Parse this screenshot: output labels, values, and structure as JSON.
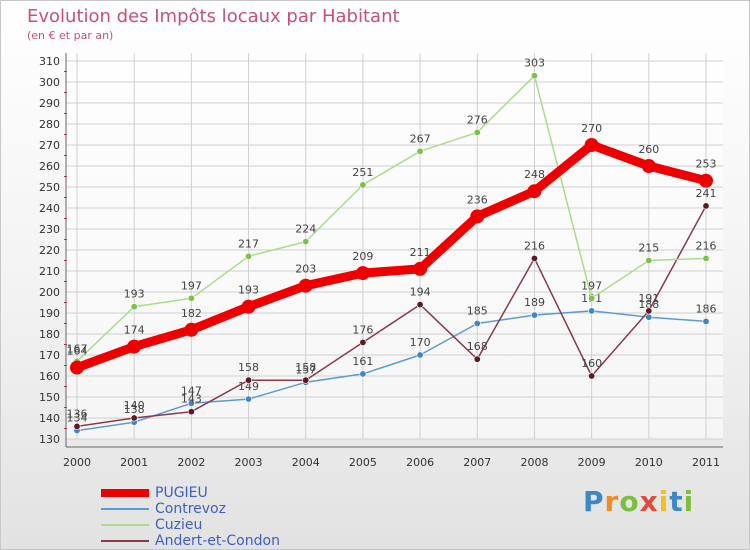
{
  "header": {
    "title": "Evolution des Impôts locaux par Habitant",
    "subtitle": "(en € et par an)"
  },
  "logo": {
    "text": "Proxiti",
    "letter_colors": [
      "#3f86c8",
      "#f28a1e",
      "#7bbf3c",
      "#e04a3c",
      "#f2c01e",
      "#3f86c8",
      "#7bbf3c"
    ]
  },
  "chart_data": {
    "type": "line",
    "title": "Evolution des Impôts locaux par Habitant",
    "subtitle": "(en € et par an)",
    "xlabel": "",
    "ylabel": "",
    "x": [
      "2000",
      "2001",
      "2002",
      "2003",
      "2004",
      "2005",
      "2006",
      "2007",
      "2008",
      "2009",
      "2010",
      "2011"
    ],
    "y_ticks": [
      130,
      140,
      150,
      160,
      170,
      180,
      190,
      200,
      210,
      220,
      230,
      240,
      250,
      260,
      270,
      280,
      290,
      300,
      310
    ],
    "ylim": [
      130,
      310
    ],
    "grid": true,
    "legend_position": "bottom-left",
    "series": [
      {
        "name": "Contrevoz",
        "color": "#5b9bd5",
        "dot": "#3f86c8",
        "values": [
          134,
          138,
          147,
          149,
          157,
          161,
          170,
          185,
          189,
          191,
          188,
          186
        ]
      },
      {
        "name": "Andert-et-Condon",
        "color": "#8b3a4a",
        "dot": "#5a1a22",
        "values": [
          136,
          140,
          143,
          158,
          158,
          176,
          194,
          168,
          216,
          160,
          191,
          241
        ]
      },
      {
        "name": "Cuzieu",
        "color": "#a9dd8a",
        "dot": "#7bc24a",
        "values": [
          167,
          193,
          197,
          217,
          224,
          251,
          267,
          276,
          303,
          197,
          215,
          216
        ]
      },
      {
        "name": "PUGIEU",
        "color": "#ee0000",
        "dot": "#ee0000",
        "values": [
          164,
          174,
          182,
          193,
          203,
          209,
          211,
          236,
          248,
          270,
          260,
          253
        ]
      }
    ],
    "legend_order": [
      "PUGIEU",
      "Contrevoz",
      "Cuzieu",
      "Andert-et-Condon"
    ]
  }
}
